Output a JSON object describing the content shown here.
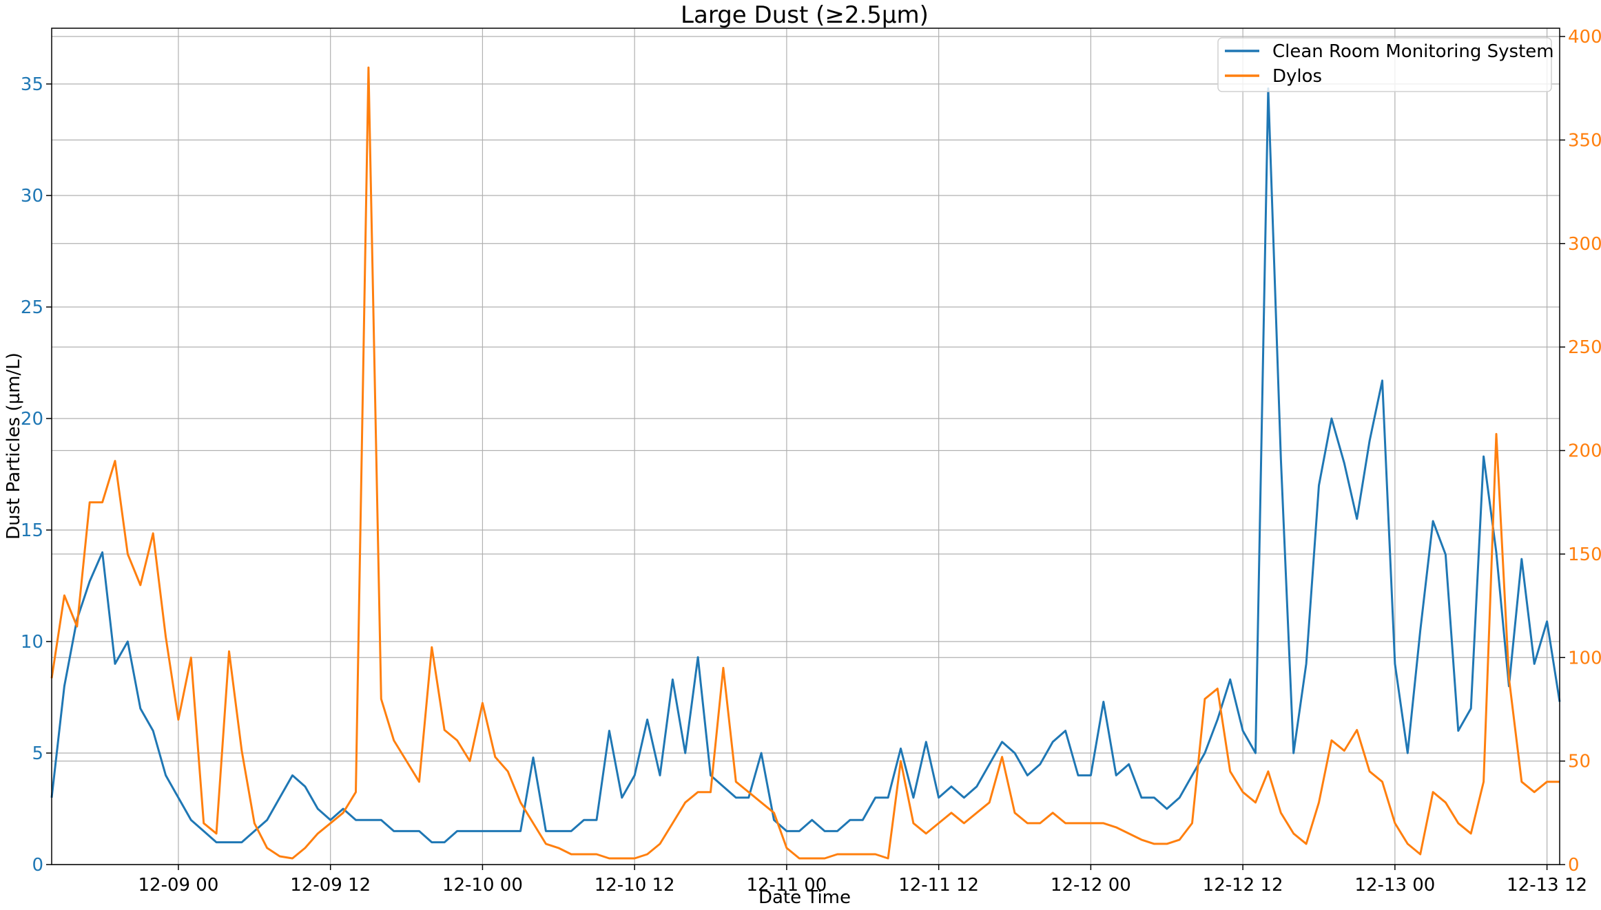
{
  "chart_data": {
    "type": "line",
    "title": "Large Dust (≥2.5µm)",
    "xlabel": "Date Time",
    "ylabel": "Dust Particles (µm/L)",
    "x_range": [
      "2024-12-08 14:00",
      "2024-12-13 13:00"
    ],
    "x_ticks": [
      {
        "t": "2024-12-09 00:00",
        "label": "12-09 00"
      },
      {
        "t": "2024-12-09 12:00",
        "label": "12-09 12"
      },
      {
        "t": "2024-12-10 00:00",
        "label": "12-10 00"
      },
      {
        "t": "2024-12-10 12:00",
        "label": "12-10 12"
      },
      {
        "t": "2024-12-11 00:00",
        "label": "12-11 00"
      },
      {
        "t": "2024-12-11 12:00",
        "label": "12-11 12"
      },
      {
        "t": "2024-12-12 00:00",
        "label": "12-12 00"
      },
      {
        "t": "2024-12-12 12:00",
        "label": "12-12 12"
      },
      {
        "t": "2024-12-13 00:00",
        "label": "12-13 00"
      },
      {
        "t": "2024-12-13 12:00",
        "label": "12-13 12"
      }
    ],
    "y_left": {
      "range": [
        0,
        37.5
      ],
      "ticks": [
        0,
        5,
        10,
        15,
        20,
        25,
        30,
        35
      ],
      "color": "#1f77b4"
    },
    "y_right": {
      "range": [
        0,
        404
      ],
      "ticks": [
        0,
        50,
        100,
        150,
        200,
        250,
        300,
        350,
        400
      ],
      "color": "#ff7f0e"
    },
    "grid": true,
    "legend": "top-right",
    "series": [
      {
        "name": "Clean Room Monitoring System",
        "axis": "left",
        "color": "#1f77b4",
        "points": [
          [
            "2024-12-08 14:00",
            3.0
          ],
          [
            "2024-12-08 15:00",
            8.0
          ],
          [
            "2024-12-08 16:00",
            11.0
          ],
          [
            "2024-12-08 17:00",
            12.7
          ],
          [
            "2024-12-08 18:00",
            14.0
          ],
          [
            "2024-12-08 19:00",
            9.0
          ],
          [
            "2024-12-08 20:00",
            10.0
          ],
          [
            "2024-12-08 21:00",
            7.0
          ],
          [
            "2024-12-08 22:00",
            6.0
          ],
          [
            "2024-12-08 23:00",
            4.0
          ],
          [
            "2024-12-09 00:00",
            3.0
          ],
          [
            "2024-12-09 01:00",
            2.0
          ],
          [
            "2024-12-09 02:00",
            1.5
          ],
          [
            "2024-12-09 03:00",
            1.0
          ],
          [
            "2024-12-09 04:00",
            1.0
          ],
          [
            "2024-12-09 05:00",
            1.0
          ],
          [
            "2024-12-09 06:00",
            1.5
          ],
          [
            "2024-12-09 07:00",
            2.0
          ],
          [
            "2024-12-09 08:00",
            3.0
          ],
          [
            "2024-12-09 09:00",
            4.0
          ],
          [
            "2024-12-09 10:00",
            3.5
          ],
          [
            "2024-12-09 11:00",
            2.5
          ],
          [
            "2024-12-09 12:00",
            2.0
          ],
          [
            "2024-12-09 13:00",
            2.5
          ],
          [
            "2024-12-09 14:00",
            2.0
          ],
          [
            "2024-12-09 15:00",
            2.0
          ],
          [
            "2024-12-09 16:00",
            2.0
          ],
          [
            "2024-12-09 17:00",
            1.5
          ],
          [
            "2024-12-09 18:00",
            1.5
          ],
          [
            "2024-12-09 19:00",
            1.5
          ],
          [
            "2024-12-09 20:00",
            1.0
          ],
          [
            "2024-12-09 21:00",
            1.0
          ],
          [
            "2024-12-09 22:00",
            1.5
          ],
          [
            "2024-12-09 23:00",
            1.5
          ],
          [
            "2024-12-10 00:00",
            1.5
          ],
          [
            "2024-12-10 01:00",
            1.5
          ],
          [
            "2024-12-10 02:00",
            1.5
          ],
          [
            "2024-12-10 03:00",
            1.5
          ],
          [
            "2024-12-10 04:00",
            4.8
          ],
          [
            "2024-12-10 05:00",
            1.5
          ],
          [
            "2024-12-10 06:00",
            1.5
          ],
          [
            "2024-12-10 07:00",
            1.5
          ],
          [
            "2024-12-10 08:00",
            2.0
          ],
          [
            "2024-12-10 09:00",
            2.0
          ],
          [
            "2024-12-10 10:00",
            6.0
          ],
          [
            "2024-12-10 11:00",
            3.0
          ],
          [
            "2024-12-10 12:00",
            4.0
          ],
          [
            "2024-12-10 13:00",
            6.5
          ],
          [
            "2024-12-10 14:00",
            4.0
          ],
          [
            "2024-12-10 15:00",
            8.3
          ],
          [
            "2024-12-10 16:00",
            5.0
          ],
          [
            "2024-12-10 17:00",
            9.3
          ],
          [
            "2024-12-10 18:00",
            4.0
          ],
          [
            "2024-12-10 19:00",
            3.5
          ],
          [
            "2024-12-10 20:00",
            3.0
          ],
          [
            "2024-12-10 21:00",
            3.0
          ],
          [
            "2024-12-10 22:00",
            5.0
          ],
          [
            "2024-12-10 23:00",
            2.0
          ],
          [
            "2024-12-11 00:00",
            1.5
          ],
          [
            "2024-12-11 01:00",
            1.5
          ],
          [
            "2024-12-11 02:00",
            2.0
          ],
          [
            "2024-12-11 03:00",
            1.5
          ],
          [
            "2024-12-11 04:00",
            1.5
          ],
          [
            "2024-12-11 05:00",
            2.0
          ],
          [
            "2024-12-11 06:00",
            2.0
          ],
          [
            "2024-12-11 07:00",
            3.0
          ],
          [
            "2024-12-11 08:00",
            3.0
          ],
          [
            "2024-12-11 09:00",
            5.2
          ],
          [
            "2024-12-11 10:00",
            3.0
          ],
          [
            "2024-12-11 11:00",
            5.5
          ],
          [
            "2024-12-11 12:00",
            3.0
          ],
          [
            "2024-12-11 13:00",
            3.5
          ],
          [
            "2024-12-11 14:00",
            3.0
          ],
          [
            "2024-12-11 15:00",
            3.5
          ],
          [
            "2024-12-11 16:00",
            4.5
          ],
          [
            "2024-12-11 17:00",
            5.5
          ],
          [
            "2024-12-11 18:00",
            5.0
          ],
          [
            "2024-12-11 19:00",
            4.0
          ],
          [
            "2024-12-11 20:00",
            4.5
          ],
          [
            "2024-12-11 21:00",
            5.5
          ],
          [
            "2024-12-11 22:00",
            6.0
          ],
          [
            "2024-12-11 23:00",
            4.0
          ],
          [
            "2024-12-12 00:00",
            4.0
          ],
          [
            "2024-12-12 01:00",
            7.3
          ],
          [
            "2024-12-12 02:00",
            4.0
          ],
          [
            "2024-12-12 03:00",
            4.5
          ],
          [
            "2024-12-12 04:00",
            3.0
          ],
          [
            "2024-12-12 05:00",
            3.0
          ],
          [
            "2024-12-12 06:00",
            2.5
          ],
          [
            "2024-12-12 07:00",
            3.0
          ],
          [
            "2024-12-12 08:00",
            4.0
          ],
          [
            "2024-12-12 09:00",
            5.0
          ],
          [
            "2024-12-12 10:00",
            6.5
          ],
          [
            "2024-12-12 11:00",
            8.3
          ],
          [
            "2024-12-12 12:00",
            6.0
          ],
          [
            "2024-12-12 13:00",
            5.0
          ],
          [
            "2024-12-12 14:00",
            34.8
          ],
          [
            "2024-12-12 15:00",
            18.2
          ],
          [
            "2024-12-12 16:00",
            5.0
          ],
          [
            "2024-12-12 17:00",
            9.0
          ],
          [
            "2024-12-12 18:00",
            17.0
          ],
          [
            "2024-12-12 19:00",
            20.0
          ],
          [
            "2024-12-12 20:00",
            18.0
          ],
          [
            "2024-12-12 21:00",
            15.5
          ],
          [
            "2024-12-12 22:00",
            19.0
          ],
          [
            "2024-12-12 23:00",
            21.7
          ],
          [
            "2024-12-13 00:00",
            9.0
          ],
          [
            "2024-12-13 01:00",
            5.0
          ],
          [
            "2024-12-13 02:00",
            10.5
          ],
          [
            "2024-12-13 03:00",
            15.4
          ],
          [
            "2024-12-13 04:00",
            13.9
          ],
          [
            "2024-12-13 05:00",
            6.0
          ],
          [
            "2024-12-13 06:00",
            7.0
          ],
          [
            "2024-12-13 07:00",
            18.3
          ],
          [
            "2024-12-13 08:00",
            14.0
          ],
          [
            "2024-12-13 09:00",
            8.0
          ],
          [
            "2024-12-13 10:00",
            13.7
          ],
          [
            "2024-12-13 11:00",
            9.0
          ],
          [
            "2024-12-13 12:00",
            10.9
          ],
          [
            "2024-12-13 13:00",
            7.3
          ]
        ]
      },
      {
        "name": "Dylos",
        "axis": "right",
        "color": "#ff7f0e",
        "points": [
          [
            "2024-12-08 14:00",
            90
          ],
          [
            "2024-12-08 15:00",
            130
          ],
          [
            "2024-12-08 16:00",
            115
          ],
          [
            "2024-12-08 17:00",
            175
          ],
          [
            "2024-12-08 18:00",
            175
          ],
          [
            "2024-12-08 19:00",
            195
          ],
          [
            "2024-12-08 20:00",
            150
          ],
          [
            "2024-12-08 21:00",
            135
          ],
          [
            "2024-12-08 22:00",
            160
          ],
          [
            "2024-12-08 23:00",
            110
          ],
          [
            "2024-12-09 00:00",
            70
          ],
          [
            "2024-12-09 01:00",
            100
          ],
          [
            "2024-12-09 02:00",
            20
          ],
          [
            "2024-12-09 03:00",
            15
          ],
          [
            "2024-12-09 04:00",
            103
          ],
          [
            "2024-12-09 05:00",
            55
          ],
          [
            "2024-12-09 06:00",
            20
          ],
          [
            "2024-12-09 07:00",
            8
          ],
          [
            "2024-12-09 08:00",
            4
          ],
          [
            "2024-12-09 09:00",
            3
          ],
          [
            "2024-12-09 10:00",
            8
          ],
          [
            "2024-12-09 11:00",
            15
          ],
          [
            "2024-12-09 12:00",
            20
          ],
          [
            "2024-12-09 13:00",
            25
          ],
          [
            "2024-12-09 14:00",
            35
          ],
          [
            "2024-12-09 15:00",
            385
          ],
          [
            "2024-12-09 16:00",
            80
          ],
          [
            "2024-12-09 17:00",
            60
          ],
          [
            "2024-12-09 18:00",
            50
          ],
          [
            "2024-12-09 19:00",
            40
          ],
          [
            "2024-12-09 20:00",
            105
          ],
          [
            "2024-12-09 21:00",
            65
          ],
          [
            "2024-12-09 22:00",
            60
          ],
          [
            "2024-12-09 23:00",
            50
          ],
          [
            "2024-12-10 00:00",
            78
          ],
          [
            "2024-12-10 01:00",
            52
          ],
          [
            "2024-12-10 02:00",
            45
          ],
          [
            "2024-12-10 03:00",
            30
          ],
          [
            "2024-12-10 04:00",
            20
          ],
          [
            "2024-12-10 05:00",
            10
          ],
          [
            "2024-12-10 06:00",
            8
          ],
          [
            "2024-12-10 07:00",
            5
          ],
          [
            "2024-12-10 08:00",
            5
          ],
          [
            "2024-12-10 09:00",
            5
          ],
          [
            "2024-12-10 10:00",
            3
          ],
          [
            "2024-12-10 11:00",
            3
          ],
          [
            "2024-12-10 12:00",
            3
          ],
          [
            "2024-12-10 13:00",
            5
          ],
          [
            "2024-12-10 14:00",
            10
          ],
          [
            "2024-12-10 15:00",
            20
          ],
          [
            "2024-12-10 16:00",
            30
          ],
          [
            "2024-12-10 17:00",
            35
          ],
          [
            "2024-12-10 18:00",
            35
          ],
          [
            "2024-12-10 19:00",
            95
          ],
          [
            "2024-12-10 20:00",
            40
          ],
          [
            "2024-12-10 21:00",
            35
          ],
          [
            "2024-12-10 22:00",
            30
          ],
          [
            "2024-12-10 23:00",
            25
          ],
          [
            "2024-12-11 00:00",
            8
          ],
          [
            "2024-12-11 01:00",
            3
          ],
          [
            "2024-12-11 02:00",
            3
          ],
          [
            "2024-12-11 03:00",
            3
          ],
          [
            "2024-12-11 04:00",
            5
          ],
          [
            "2024-12-11 05:00",
            5
          ],
          [
            "2024-12-11 06:00",
            5
          ],
          [
            "2024-12-11 07:00",
            5
          ],
          [
            "2024-12-11 08:00",
            3
          ],
          [
            "2024-12-11 09:00",
            50
          ],
          [
            "2024-12-11 10:00",
            20
          ],
          [
            "2024-12-11 11:00",
            15
          ],
          [
            "2024-12-11 12:00",
            20
          ],
          [
            "2024-12-11 13:00",
            25
          ],
          [
            "2024-12-11 14:00",
            20
          ],
          [
            "2024-12-11 15:00",
            25
          ],
          [
            "2024-12-11 16:00",
            30
          ],
          [
            "2024-12-11 17:00",
            52
          ],
          [
            "2024-12-11 18:00",
            25
          ],
          [
            "2024-12-11 19:00",
            20
          ],
          [
            "2024-12-11 20:00",
            20
          ],
          [
            "2024-12-11 21:00",
            25
          ],
          [
            "2024-12-11 22:00",
            20
          ],
          [
            "2024-12-11 23:00",
            20
          ],
          [
            "2024-12-12 00:00",
            20
          ],
          [
            "2024-12-12 01:00",
            20
          ],
          [
            "2024-12-12 02:00",
            18
          ],
          [
            "2024-12-12 03:00",
            15
          ],
          [
            "2024-12-12 04:00",
            12
          ],
          [
            "2024-12-12 05:00",
            10
          ],
          [
            "2024-12-12 06:00",
            10
          ],
          [
            "2024-12-12 07:00",
            12
          ],
          [
            "2024-12-12 08:00",
            20
          ],
          [
            "2024-12-12 09:00",
            80
          ],
          [
            "2024-12-12 10:00",
            85
          ],
          [
            "2024-12-12 11:00",
            45
          ],
          [
            "2024-12-12 12:00",
            35
          ],
          [
            "2024-12-12 13:00",
            30
          ],
          [
            "2024-12-12 14:00",
            45
          ],
          [
            "2024-12-12 15:00",
            25
          ],
          [
            "2024-12-12 16:00",
            15
          ],
          [
            "2024-12-12 17:00",
            10
          ],
          [
            "2024-12-12 18:00",
            30
          ],
          [
            "2024-12-12 19:00",
            60
          ],
          [
            "2024-12-12 20:00",
            55
          ],
          [
            "2024-12-12 21:00",
            65
          ],
          [
            "2024-12-12 22:00",
            45
          ],
          [
            "2024-12-12 23:00",
            40
          ],
          [
            "2024-12-13 00:00",
            20
          ],
          [
            "2024-12-13 01:00",
            10
          ],
          [
            "2024-12-13 02:00",
            5
          ],
          [
            "2024-12-13 03:00",
            35
          ],
          [
            "2024-12-13 04:00",
            30
          ],
          [
            "2024-12-13 05:00",
            20
          ],
          [
            "2024-12-13 06:00",
            15
          ],
          [
            "2024-12-13 07:00",
            40
          ],
          [
            "2024-12-13 08:00",
            208
          ],
          [
            "2024-12-13 09:00",
            90
          ],
          [
            "2024-12-13 10:00",
            40
          ],
          [
            "2024-12-13 11:00",
            35
          ],
          [
            "2024-12-13 12:00",
            40
          ],
          [
            "2024-12-13 13:00",
            40
          ]
        ]
      }
    ]
  }
}
